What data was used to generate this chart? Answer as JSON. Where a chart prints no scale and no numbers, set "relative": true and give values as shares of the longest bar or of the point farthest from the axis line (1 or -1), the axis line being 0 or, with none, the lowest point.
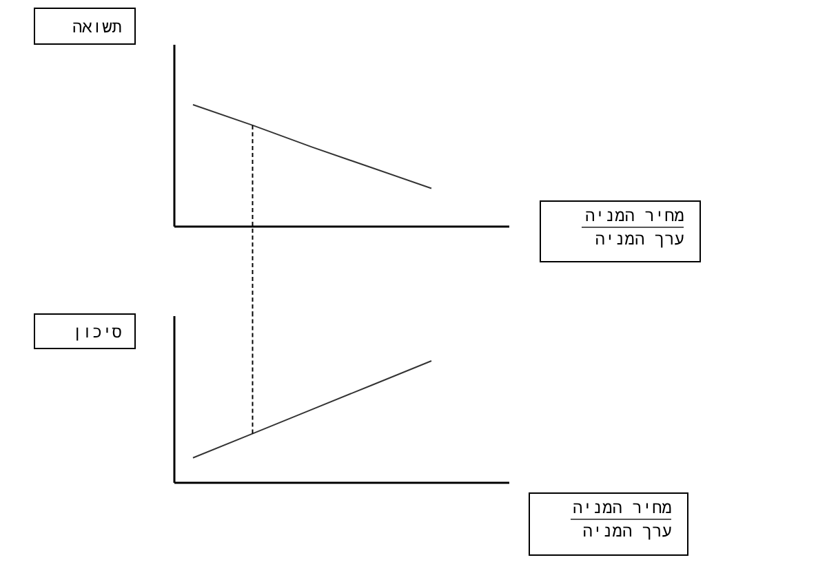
{
  "chart_data": [
    {
      "type": "line",
      "relative": true,
      "categories": [
        null,
        null,
        null,
        null,
        null
      ],
      "values": [
        1,
        0.83,
        0.65,
        0.48,
        0.31
      ],
      "color": "#333333",
      "ylabel": "תשואה",
      "xlabel": "מחיר המניה\nערך המניה",
      "tick_labels": false,
      "grid": false,
      "marker": "none",
      "line_style": "solid"
    },
    {
      "type": "line",
      "relative": true,
      "categories": [
        null,
        null,
        null,
        null,
        null
      ],
      "values": [
        0.2,
        0.4,
        0.6,
        0.8,
        1
      ],
      "color": "#333333",
      "ylabel": "סיכון",
      "xlabel": "מחיר המניה\nערך המניה",
      "tick_labels": false,
      "grid": false,
      "marker": "none",
      "line_style": "solid"
    }
  ]
}
